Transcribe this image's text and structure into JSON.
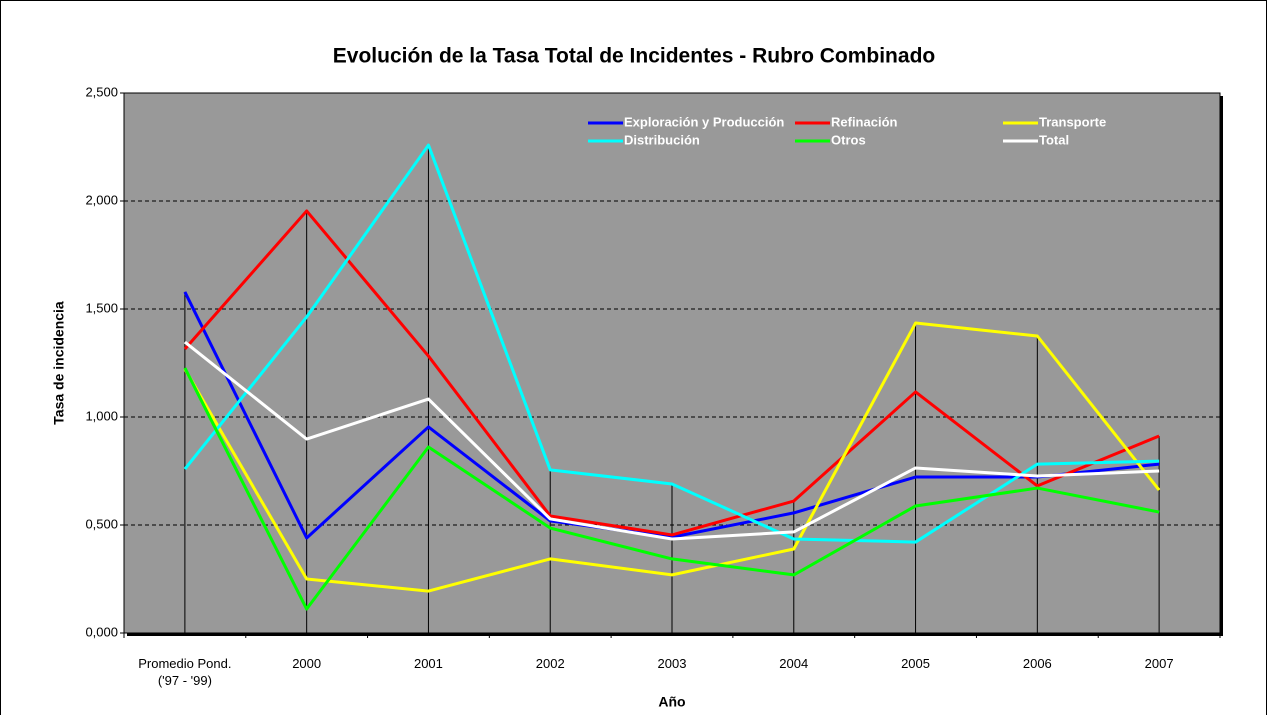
{
  "chart_data": {
    "type": "line",
    "title": "Evolución de la Tasa Total de Incidentes - Rubro Combinado",
    "x_label": "Año",
    "y_label": "Tasa de incidencia",
    "categories": [
      "Promedio Pond.('97 - '99)",
      "2000",
      "2001",
      "2002",
      "2003",
      "2004",
      "2005",
      "2006",
      "2007"
    ],
    "series": [
      {
        "name": "Exploración y Producción",
        "color": "#0000ff",
        "values": [
          1579,
          440,
          954,
          519,
          444,
          556,
          722,
          722,
          782
        ]
      },
      {
        "name": "Refinación",
        "color": "#ff0000",
        "values": [
          1315,
          1954,
          1282,
          542,
          454,
          611,
          1116,
          681,
          912
        ]
      },
      {
        "name": "Transporte",
        "color": "#ffff00",
        "values": [
          1222,
          250,
          194,
          343,
          269,
          389,
          1435,
          1375,
          662
        ]
      },
      {
        "name": "Distribución",
        "color": "#00ffff",
        "values": [
          759,
          1463,
          2259,
          755,
          690,
          435,
          421,
          782,
          796
        ]
      },
      {
        "name": "Otros",
        "color": "#00ff00",
        "values": [
          1227,
          111,
          861,
          486,
          343,
          269,
          588,
          671,
          560
        ]
      },
      {
        "name": "Total",
        "color": "#ffffff",
        "values": [
          1347,
          898,
          1083,
          528,
          435,
          468,
          764,
          727,
          750
        ]
      }
    ],
    "ylim": [
      0,
      2500
    ],
    "yticks": [
      {
        "value": 0,
        "label": "0,000"
      },
      {
        "value": 500,
        "label": "0,500"
      },
      {
        "value": 1000,
        "label": "1,000"
      },
      {
        "value": 1500,
        "label": "1,500"
      },
      {
        "value": 2000,
        "label": "2,000"
      },
      {
        "value": 2500,
        "label": "2,500"
      }
    ],
    "grid": true,
    "plot_background": "#999999"
  }
}
